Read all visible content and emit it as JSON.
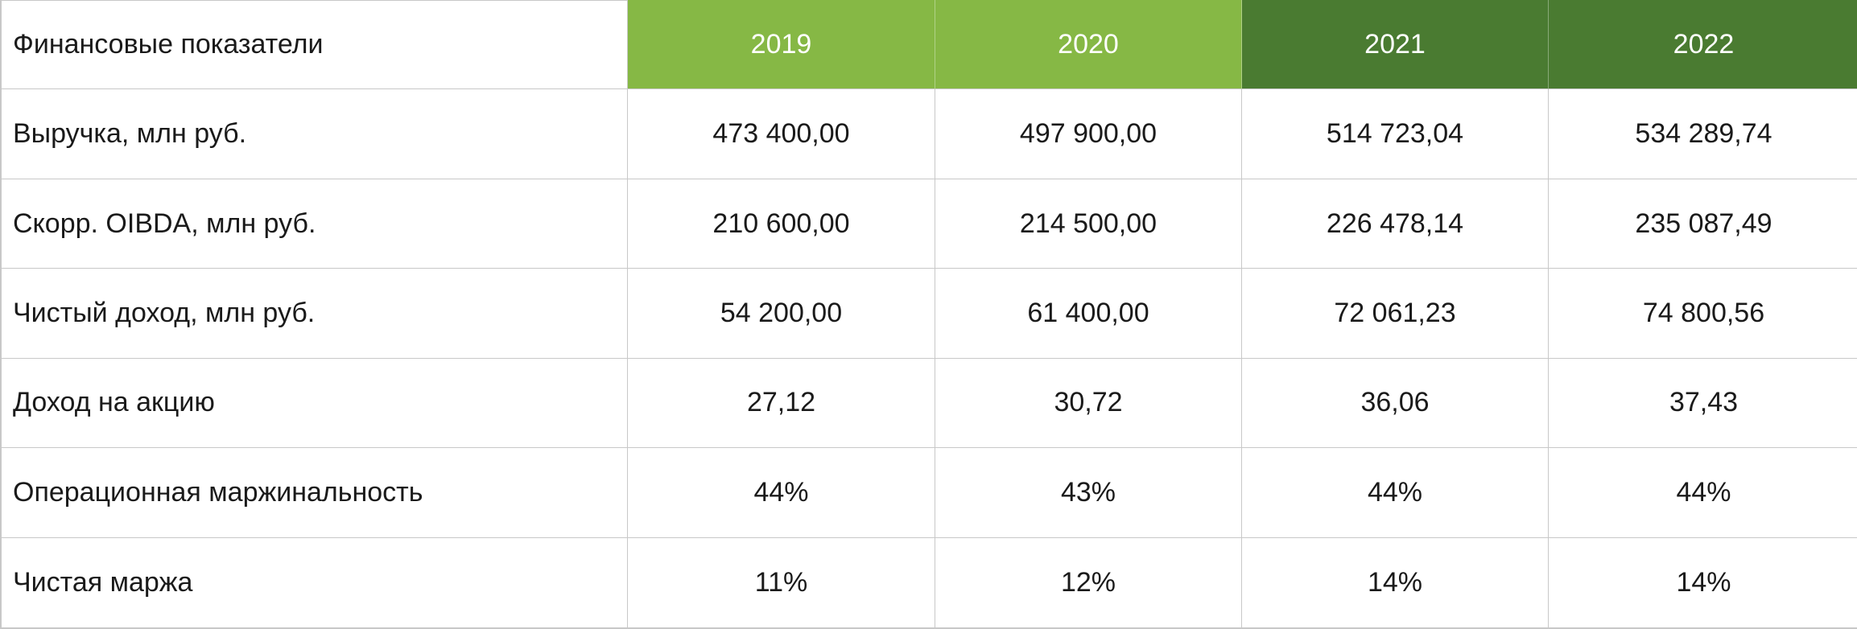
{
  "chart_data": {
    "type": "table",
    "header_label": "Финансовые показатели",
    "columns": [
      {
        "label": "2019",
        "color": "#86b845"
      },
      {
        "label": "2020",
        "color": "#86b845"
      },
      {
        "label": "2021",
        "color": "#4a7b31"
      },
      {
        "label": "2022",
        "color": "#4a7b31"
      }
    ],
    "rows": [
      {
        "label": "Выручка, млн руб.",
        "values": [
          "473 400,00",
          "497 900,00",
          "514 723,04",
          "534 289,74"
        ]
      },
      {
        "label": "Скорр. OIBDA, млн руб.",
        "values": [
          "210 600,00",
          "214 500,00",
          "226 478,14",
          "235 087,49"
        ]
      },
      {
        "label": "Чистый доход, млн руб.",
        "values": [
          "54 200,00",
          "61 400,00",
          "72 061,23",
          "74 800,56"
        ]
      },
      {
        "label": "Доход на акцию",
        "values": [
          "27,12",
          "30,72",
          "36,06",
          "37,43"
        ]
      },
      {
        "label": "Операционная маржинальность",
        "values": [
          "44%",
          "43%",
          "44%",
          "44%"
        ]
      },
      {
        "label": "Чистая маржа",
        "values": [
          "11%",
          "12%",
          "14%",
          "14%"
        ]
      }
    ]
  }
}
